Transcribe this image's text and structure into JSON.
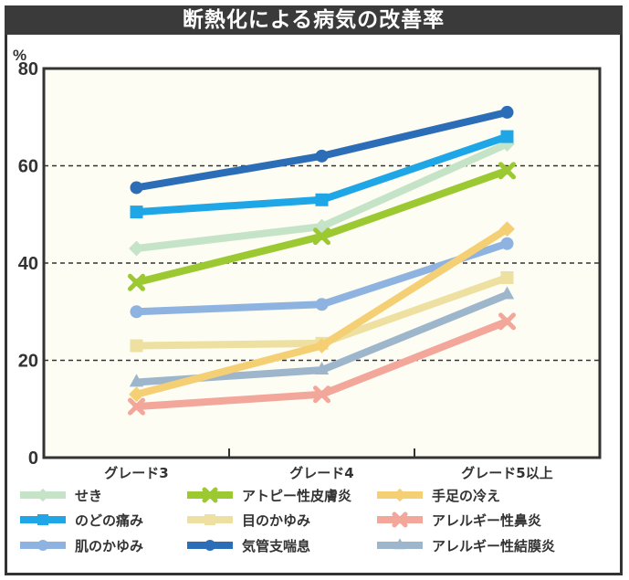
{
  "chart_data": {
    "type": "line",
    "title": "断熱化による病気の改善率",
    "ylabel": "%",
    "xlabel": "",
    "ylim": [
      0,
      80
    ],
    "yticks": [
      0,
      20,
      40,
      60,
      80
    ],
    "grid": "horizontal-dashed",
    "legend_position": "bottom",
    "categories": [
      "グレード3",
      "グレード4",
      "グレード5以上"
    ],
    "series": [
      {
        "name": "せき",
        "color": "#c5e3c7",
        "marker": "diamond",
        "values": [
          43,
          47.5,
          64.5
        ]
      },
      {
        "name": "アトピー性皮膚炎",
        "color": "#9cc932",
        "marker": "cross",
        "values": [
          36,
          45.5,
          59
        ]
      },
      {
        "name": "手足の冷え",
        "color": "#f5cf73",
        "marker": "diamond",
        "values": [
          13,
          23,
          47
        ]
      },
      {
        "name": "のどの痛み",
        "color": "#1ea6e6",
        "marker": "square",
        "values": [
          50.5,
          53,
          66
        ]
      },
      {
        "name": "目のかゆみ",
        "color": "#ede0a0",
        "marker": "square",
        "values": [
          23,
          23.5,
          37
        ]
      },
      {
        "name": "アレルギー性鼻炎",
        "color": "#f3a69a",
        "marker": "cross",
        "values": [
          10.5,
          13,
          28
        ]
      },
      {
        "name": "肌のかゆみ",
        "color": "#8fb3e0",
        "marker": "circle",
        "values": [
          30,
          31.5,
          44
        ]
      },
      {
        "name": "気管支喘息",
        "color": "#2c6db8",
        "marker": "circle",
        "values": [
          55.5,
          62,
          71
        ]
      },
      {
        "name": "アレルギー性結膜炎",
        "color": "#9db6cc",
        "marker": "triangle",
        "values": [
          15.5,
          18,
          33.5
        ]
      }
    ]
  }
}
